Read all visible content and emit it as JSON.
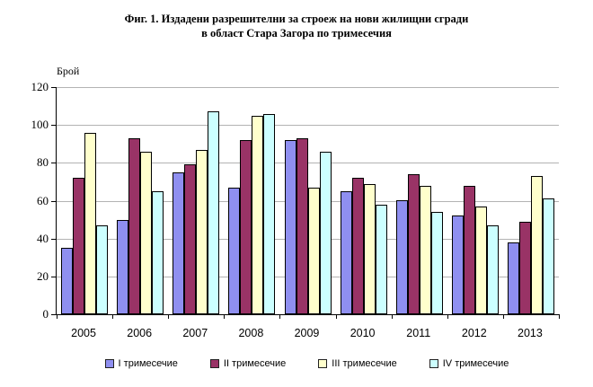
{
  "chart_data": {
    "type": "bar",
    "title_lines": [
      "Фиг. 1. Издадени разрешителни за строеж на нови жилищни сгради",
      "в област Стара Загора по тримесечия"
    ],
    "ylabel": "Брой",
    "xlabel": "",
    "ylim": [
      0,
      120
    ],
    "yticks": [
      0,
      20,
      40,
      60,
      80,
      100,
      120
    ],
    "grid": true,
    "legend_position": "bottom",
    "categories": [
      "2005",
      "2006",
      "2007",
      "2008",
      "2009",
      "2010",
      "2011",
      "2012",
      "2013"
    ],
    "series": [
      {
        "name": "I тримесечие",
        "color": "#8f8ff0",
        "values": [
          35,
          50,
          75,
          67,
          92,
          65,
          60,
          52,
          38
        ]
      },
      {
        "name": "II тримесечие",
        "color": "#993366",
        "values": [
          72,
          93,
          79,
          92,
          93,
          72,
          74,
          68,
          49
        ]
      },
      {
        "name": "III тримесечие",
        "color": "#ffffcc",
        "values": [
          96,
          86,
          87,
          105,
          67,
          69,
          68,
          57,
          73
        ]
      },
      {
        "name": "IV тримесечие",
        "color": "#ccffff",
        "values": [
          47,
          65,
          107,
          106,
          86,
          58,
          54,
          47,
          61
        ]
      }
    ]
  }
}
